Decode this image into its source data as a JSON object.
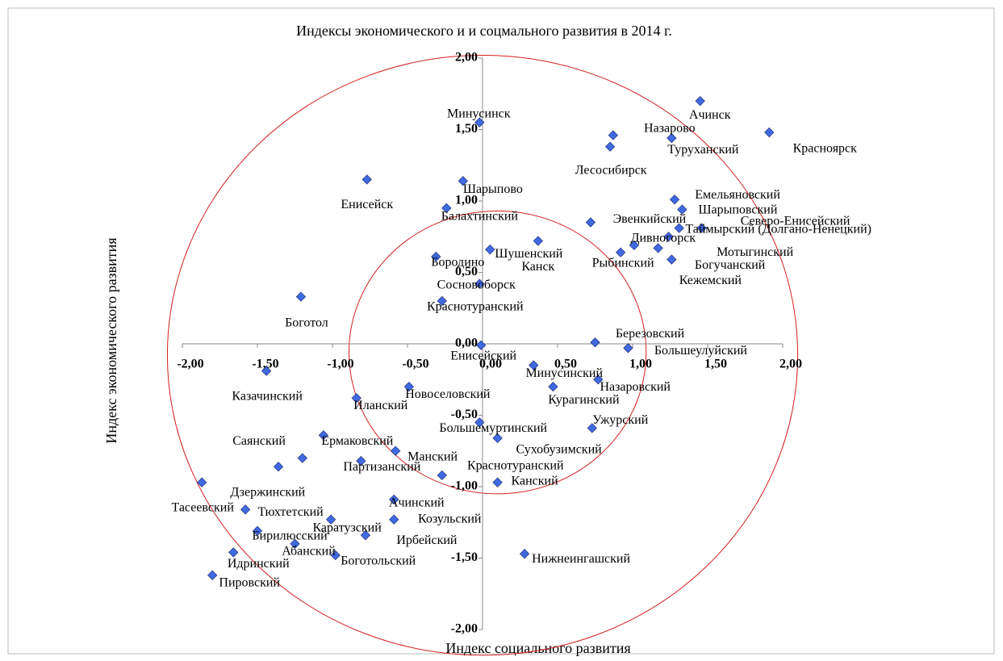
{
  "chart_data": {
    "type": "scatter",
    "title": "Индексы экономического и  и соцмального развития в 2014 г.",
    "x_label": "Индекс социального развития",
    "y_label": "Индекс экономического развития",
    "color": "#4169e1",
    "circle_color": "#d42020",
    "circles": [
      {
        "cx": 0,
        "cy": -0.08,
        "r": 2.1
      },
      {
        "cx": 0.1,
        "cy": -0.06,
        "r": 0.99
      }
    ],
    "xlim": [
      -2.0,
      2.0
    ],
    "ylim": [
      -2.0,
      2.0
    ],
    "xticks": [
      {
        "value": -2,
        "label": "-2,00"
      },
      {
        "value": -1.5,
        "label": "-1,50"
      },
      {
        "value": -1,
        "label": "-1,00"
      },
      {
        "value": -0.5,
        "label": "-0,50"
      },
      {
        "value": 0,
        "label": "0,00"
      },
      {
        "value": 0.5,
        "label": "0,50"
      },
      {
        "value": 1,
        "label": "1,00"
      },
      {
        "value": 1.5,
        "label": "1,50"
      },
      {
        "value": 2,
        "label": "2,00"
      }
    ],
    "yticks": [
      {
        "value": -2,
        "label": "-2,00"
      },
      {
        "value": -1.5,
        "label": "-1,50"
      },
      {
        "value": -1,
        "label": "-1,00"
      },
      {
        "value": -0.5,
        "label": "-0,50"
      },
      {
        "value": 0,
        "label": "0,00"
      },
      {
        "value": 0.5,
        "label": "0,50"
      },
      {
        "value": 1,
        "label": "1,00"
      },
      {
        "value": 1.5,
        "label": "1,50"
      },
      {
        "value": 2,
        "label": "2,00"
      }
    ],
    "labels": [
      "Ачинск",
      "Красноярск",
      "Назарово",
      "Туруханский",
      "Лесосибирск",
      "Минусинск",
      "Енисейск",
      "Шарыпово",
      "Балахтинский",
      "Емельяновский",
      "Шарыповский",
      "Эвенкийский",
      "Северо-Енисейский",
      "Таймырский (Долгано-Ненецкий)",
      "Дивногорск",
      "Мотыгинский",
      "Рыбинский",
      "Богучанский",
      "Кежемский",
      "Канск",
      "Шушенский",
      "Бородино",
      "Сосновоборск",
      "Краснотуранский",
      "Боготол",
      "Березовский",
      "Большеулуйский",
      "Енисейский",
      "Минусинский",
      "Назаровский",
      "Курагинский",
      "Казачинский",
      "Новоселовский",
      "Иланский",
      "Ужурский",
      "Большемуртинский",
      "Сухобузимский",
      "Ермаковский",
      "Дзержинский",
      "Партизанский",
      "Манский",
      "Краснотуранский",
      "Саянский",
      "Тасеевский",
      "Канский",
      "Ачинский",
      "Тюхтетский",
      "Козульский",
      "Каратузский",
      "Бирилюсский",
      "Ирбейский",
      "Абанский",
      "Боготольский",
      "Идринский",
      "Нижнеингашский",
      "Пировский"
    ],
    "x": [
      1.45,
      1.91,
      0.87,
      1.26,
      0.85,
      -0.02,
      -0.77,
      -0.13,
      -0.24,
      1.28,
      1.33,
      0.72,
      1.46,
      1.31,
      1.01,
      1.17,
      0.92,
      1.24,
      1.26,
      0.37,
      0.05,
      -0.31,
      -0.02,
      -0.27,
      -1.21,
      0.75,
      0.97,
      -0.01,
      0.34,
      0.77,
      0.47,
      -1.44,
      -0.49,
      -0.84,
      0.73,
      -0.02,
      0.1,
      -1.06,
      -1.2,
      -0.81,
      -0.58,
      -0.27,
      -1.36,
      -1.87,
      0.1,
      -0.59,
      -1.58,
      -0.59,
      -1.01,
      -1.5,
      -0.78,
      -1.25,
      -0.98,
      -1.66,
      0.28,
      -1.8
    ],
    "y": [
      1.7,
      1.48,
      1.46,
      1.44,
      1.38,
      1.55,
      1.15,
      1.14,
      0.95,
      1.01,
      0.94,
      0.85,
      0.81,
      0.81,
      0.69,
      0.67,
      0.64,
      0.75,
      0.59,
      0.72,
      0.66,
      0.61,
      0.42,
      0.3,
      0.33,
      0.01,
      -0.03,
      -0.01,
      -0.15,
      -0.25,
      -0.3,
      -0.19,
      -0.3,
      -0.38,
      -0.59,
      -0.55,
      -0.66,
      -0.64,
      -0.8,
      -0.82,
      -0.75,
      -0.92,
      -0.86,
      -0.97,
      -0.97,
      -1.09,
      -1.16,
      -1.23,
      -1.23,
      -1.31,
      -1.34,
      -1.4,
      -1.48,
      -1.46,
      -1.47,
      -1.62
    ]
  }
}
